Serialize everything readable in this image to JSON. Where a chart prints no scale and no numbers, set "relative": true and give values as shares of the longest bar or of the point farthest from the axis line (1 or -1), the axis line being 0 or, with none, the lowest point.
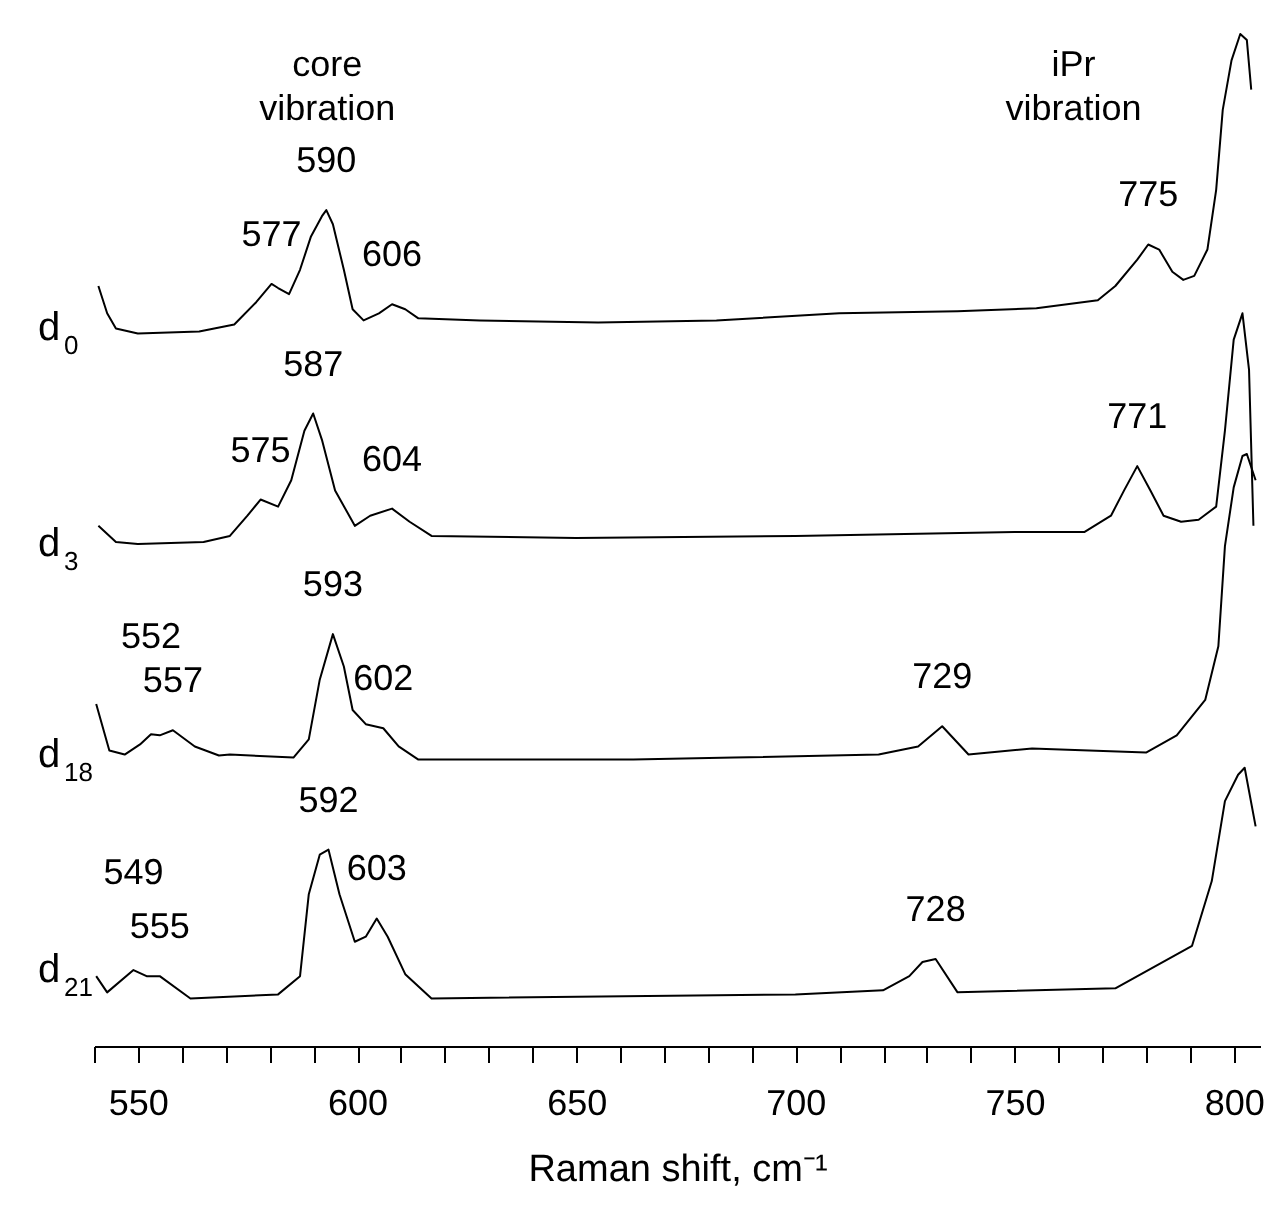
{
  "chart_data": {
    "type": "line",
    "relative": true,
    "xlabel": "Raman shift, cm⁻¹",
    "xlim": [
      540,
      806
    ],
    "xticks": [
      {
        "value": 540,
        "label": null
      },
      550,
      {
        "value": 560,
        "label": null
      },
      {
        "value": 570,
        "label": null
      },
      {
        "value": 580,
        "label": null
      },
      {
        "value": 590,
        "label": null
      },
      600,
      {
        "value": 610,
        "label": null
      },
      {
        "value": 620,
        "label": null
      },
      {
        "value": 630,
        "label": null
      },
      {
        "value": 640,
        "label": null
      },
      650,
      {
        "value": 660,
        "label": null
      },
      {
        "value": 670,
        "label": null
      },
      {
        "value": 680,
        "label": null
      },
      {
        "value": 690,
        "label": null
      },
      700,
      {
        "value": 710,
        "label": null
      },
      {
        "value": 720,
        "label": null
      },
      {
        "value": 730,
        "label": null
      },
      {
        "value": 740,
        "label": null
      },
      750,
      {
        "value": 760,
        "label": null
      },
      {
        "value": 770,
        "label": null
      },
      {
        "value": 780,
        "label": null
      },
      {
        "value": 790,
        "label": null
      },
      800
    ],
    "line_style": "solid",
    "marker": "none",
    "series": [
      {
        "name": "d$_{0}$",
        "color": "#000000",
        "x": [
          541,
          543,
          545,
          550,
          564,
          572,
          577,
          580.5,
          582,
          584.5,
          587,
          589.5,
          592,
          593,
          594.5,
          597,
          599,
          601.5,
          605,
          608,
          611,
          614,
          628,
          655,
          682,
          710,
          737,
          755,
          769,
          773,
          778,
          780.5,
          783,
          786,
          788.5,
          791,
          794,
          796,
          797.5,
          799.5,
          801.5,
          803,
          804
        ],
        "values": [
          0.751,
          0.724,
          0.709,
          0.704,
          0.706,
          0.713,
          0.735,
          0.753,
          0.749,
          0.743,
          0.767,
          0.8,
          0.82,
          0.826,
          0.812,
          0.767,
          0.728,
          0.717,
          0.724,
          0.733,
          0.728,
          0.719,
          0.717,
          0.715,
          0.717,
          0.724,
          0.726,
          0.729,
          0.737,
          0.751,
          0.777,
          0.792,
          0.787,
          0.765,
          0.757,
          0.761,
          0.787,
          0.846,
          0.925,
          0.974,
          1.0,
          0.994,
          0.945
        ]
      },
      {
        "name": "d$_{3}$",
        "color": "#000000",
        "x": [
          541,
          545,
          550,
          565,
          571,
          575,
          578,
          582,
          585,
          588,
          590,
          592,
          595,
          599.5,
          603,
          608,
          612,
          617,
          650,
          700,
          750,
          766,
          772,
          775,
          778,
          781,
          784,
          788,
          792,
          796,
          798,
          800,
          802,
          803.5,
          804.5
        ],
        "values": [
          0.514,
          0.498,
          0.496,
          0.498,
          0.504,
          0.524,
          0.54,
          0.533,
          0.559,
          0.608,
          0.625,
          0.599,
          0.549,
          0.514,
          0.524,
          0.531,
          0.518,
          0.504,
          0.502,
          0.504,
          0.508,
          0.508,
          0.524,
          0.549,
          0.573,
          0.549,
          0.524,
          0.518,
          0.52,
          0.533,
          0.608,
          0.698,
          0.724,
          0.668,
          0.514
        ]
      },
      {
        "name": "d$_{18}$",
        "color": "#000000",
        "x": [
          540.5,
          543.5,
          547,
          550.5,
          553,
          555,
          558,
          563,
          568.5,
          571,
          585.5,
          589,
          591.5,
          594.5,
          597,
          599,
          602,
          606,
          609.5,
          614,
          663,
          686,
          719,
          728,
          733.5,
          739.5,
          754,
          780,
          787,
          793.5,
          796.5,
          798,
          800,
          802,
          803,
          805
        ],
        "values": [
          0.338,
          0.292,
          0.288,
          0.298,
          0.308,
          0.307,
          0.312,
          0.296,
          0.287,
          0.288,
          0.285,
          0.303,
          0.362,
          0.407,
          0.375,
          0.332,
          0.318,
          0.314,
          0.296,
          0.283,
          0.283,
          0.285,
          0.288,
          0.296,
          0.316,
          0.288,
          0.294,
          0.29,
          0.307,
          0.342,
          0.395,
          0.494,
          0.552,
          0.583,
          0.585,
          0.559
        ]
      },
      {
        "name": "d$_{21}$",
        "color": "#000000",
        "x": [
          540.5,
          543,
          549,
          552,
          555,
          562,
          582,
          587,
          589,
          591.5,
          593.5,
          596,
          599.5,
          602,
          604.5,
          607,
          611,
          617,
          700,
          720,
          726,
          729,
          732,
          737,
          773,
          790.5,
          795,
          798,
          801,
          802.5,
          805
        ],
        "values": [
          0.069,
          0.053,
          0.075,
          0.069,
          0.069,
          0.047,
          0.051,
          0.069,
          0.15,
          0.189,
          0.194,
          0.15,
          0.103,
          0.108,
          0.126,
          0.108,
          0.071,
          0.047,
          0.051,
          0.055,
          0.069,
          0.083,
          0.086,
          0.053,
          0.057,
          0.099,
          0.163,
          0.242,
          0.268,
          0.275,
          0.217
        ]
      }
    ],
    "annotations": [
      "core vibration",
      "iPr vibration",
      {
        "text": "590",
        "x": 593,
        "y": 0.826
      },
      {
        "text": "577",
        "x": 580.5,
        "y": 0.753
      },
      {
        "text": "606",
        "x": 608,
        "y": 0.733
      },
      {
        "text": "775",
        "x": 780.5,
        "y": 0.792
      },
      {
        "text": "587",
        "x": 590,
        "y": 0.625
      },
      {
        "text": "575",
        "x": 578,
        "y": 0.54
      },
      {
        "text": "604",
        "x": 608,
        "y": 0.531
      },
      {
        "text": "771",
        "x": 778,
        "y": 0.573
      },
      {
        "text": "593",
        "x": 594.5,
        "y": 0.407
      },
      {
        "text": "552",
        "x": 553,
        "y": 0.308
      },
      {
        "text": "557",
        "x": 558,
        "y": 0.312
      },
      {
        "text": "602",
        "x": 606,
        "y": 0.314
      },
      {
        "text": "729",
        "x": 733.5,
        "y": 0.316
      },
      {
        "text": "592",
        "x": 593.5,
        "y": 0.194
      },
      {
        "text": "603",
        "x": 604.5,
        "y": 0.126
      },
      {
        "text": "549",
        "x": 549,
        "y": 0.075
      },
      {
        "text": "555",
        "x": 555,
        "y": 0.069
      },
      {
        "text": "728",
        "x": 732,
        "y": 0.086
      }
    ]
  }
}
